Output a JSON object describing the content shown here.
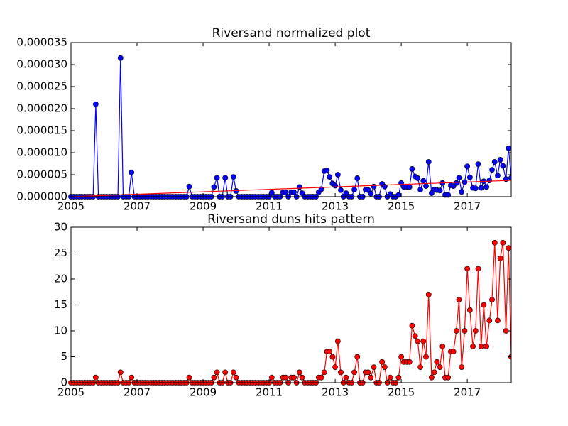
{
  "chart_data": [
    {
      "type": "line",
      "title": "Riversand normalized plot",
      "color": "#0000ff",
      "x": [
        2005,
        2005.08,
        2005.17,
        2005.25,
        2005.33,
        2005.42,
        2005.5,
        2005.58,
        2005.67,
        2005.75,
        2005.83,
        2005.92,
        2006,
        2006.08,
        2006.17,
        2006.25,
        2006.33,
        2006.42,
        2006.5,
        2006.58,
        2006.67,
        2006.75,
        2006.83,
        2006.92,
        2007,
        2007.08,
        2007.17,
        2007.25,
        2007.33,
        2007.42,
        2007.5,
        2007.58,
        2007.67,
        2007.75,
        2007.83,
        2007.92,
        2008,
        2008.08,
        2008.17,
        2008.25,
        2008.33,
        2008.42,
        2008.5,
        2008.58,
        2008.67,
        2008.75,
        2008.83,
        2008.92,
        2009,
        2009.08,
        2009.17,
        2009.25,
        2009.33,
        2009.42,
        2009.5,
        2009.58,
        2009.67,
        2009.75,
        2009.83,
        2009.92,
        2010,
        2010.08,
        2010.17,
        2010.25,
        2010.33,
        2010.42,
        2010.5,
        2010.58,
        2010.67,
        2010.75,
        2010.83,
        2010.92,
        2011,
        2011.08,
        2011.17,
        2011.25,
        2011.33,
        2011.42,
        2011.5,
        2011.58,
        2011.67,
        2011.75,
        2011.83,
        2011.92,
        2012,
        2012.08,
        2012.17,
        2012.25,
        2012.33,
        2012.42,
        2012.5,
        2012.58,
        2012.67,
        2012.75,
        2012.83,
        2012.92,
        2013,
        2013.08,
        2013.17,
        2013.25,
        2013.33,
        2013.42,
        2013.5,
        2013.58,
        2013.67,
        2013.75,
        2013.83,
        2013.92,
        2014,
        2014.08,
        2014.17,
        2014.25,
        2014.33,
        2014.42,
        2014.5,
        2014.58,
        2014.67,
        2014.75,
        2014.83,
        2014.92,
        2015,
        2015.08,
        2015.17,
        2015.25,
        2015.33,
        2015.42,
        2015.5,
        2015.58,
        2015.67,
        2015.75,
        2015.83,
        2015.92,
        2016,
        2016.08,
        2016.17,
        2016.25,
        2016.33,
        2016.42,
        2016.5,
        2016.58,
        2016.67,
        2016.75,
        2016.83,
        2016.92,
        2017,
        2017.08,
        2017.17,
        2017.25,
        2017.33,
        2017.42,
        2017.5,
        2017.58,
        2017.67,
        2017.75,
        2017.83,
        2017.92,
        2018,
        2018.08,
        2018.17,
        2018.25,
        2018.33
      ],
      "values": [
        0,
        0,
        0,
        0,
        0,
        0,
        0,
        0,
        0,
        2.1e-05,
        0,
        0,
        0,
        0,
        0,
        0,
        0,
        0,
        3.15e-05,
        0,
        0,
        0,
        5.5e-06,
        0,
        0,
        0,
        0,
        0,
        0,
        0,
        0,
        0,
        0,
        0,
        0,
        0,
        0,
        0,
        0,
        0,
        0,
        0,
        0,
        2.3e-06,
        0,
        0,
        0,
        0,
        0,
        0,
        0,
        0,
        2.2e-06,
        4.3e-06,
        0,
        0,
        4.3e-06,
        0,
        0,
        4.5e-06,
        1.3e-06,
        0,
        0,
        0,
        0,
        0,
        0,
        0,
        0,
        0,
        0,
        0,
        0,
        9e-07,
        0,
        0,
        0,
        1e-06,
        1e-06,
        0,
        1e-06,
        1e-06,
        0,
        2.2e-06,
        8e-07,
        0,
        0,
        0,
        0,
        0,
        1e-06,
        1.7e-06,
        5.8e-06,
        6e-06,
        4.5e-06,
        3e-06,
        2.5e-06,
        5e-06,
        1.5e-06,
        0,
        8e-07,
        0,
        0,
        1.6e-06,
        4.2e-06,
        0,
        0,
        1.6e-06,
        1.5e-06,
        7e-07,
        2.3e-06,
        0,
        0,
        2.9e-06,
        2.3e-06,
        0,
        6e-07,
        0,
        0,
        4e-07,
        3.1e-06,
        2.2e-06,
        2.2e-06,
        2.2e-06,
        6.3e-06,
        4.6e-06,
        4.2e-06,
        1.6e-06,
        3.6e-06,
        2.4e-06,
        7.9e-06,
        8e-07,
        1.6e-06,
        1.5e-06,
        1.4e-06,
        3.1e-06,
        4e-07,
        4e-07,
        2.6e-06,
        2.4e-06,
        3.1e-06,
        4.3e-06,
        1.1e-06,
        3.3e-06,
        6.9e-06,
        4.4e-06,
        2e-06,
        1.9e-06,
        7.4e-06,
        2e-06,
        3.5e-06,
        2.2e-06,
        3.7e-06,
        6.1e-06,
        7.9e-06,
        4.8e-06,
        8.4e-06,
        7e-06,
        4e-06,
        1.1e-05,
        4.3e-06
      ],
      "trend": {
        "color": "#ff0000",
        "x": [
          2005,
          2018.33
        ],
        "values": [
          0,
          3.7e-06
        ]
      },
      "xlim": [
        2005,
        2018.33
      ],
      "xticks": [
        2005,
        2007,
        2009,
        2011,
        2013,
        2015,
        2017
      ],
      "ylim": [
        0,
        3.5e-05
      ],
      "yticks": [
        {
          "value": 0,
          "label": "0.000000"
        },
        {
          "value": 5e-06,
          "label": "0.000005"
        },
        {
          "value": 1e-05,
          "label": "0.000010"
        },
        {
          "value": 1.5e-05,
          "label": "0.000015"
        },
        {
          "value": 2e-05,
          "label": "0.000020"
        },
        {
          "value": 2.5e-05,
          "label": "0.000025"
        },
        {
          "value": 3e-05,
          "label": "0.000030"
        },
        {
          "value": 3.5e-05,
          "label": "0.000035"
        }
      ]
    },
    {
      "type": "line",
      "title": "Riversand duns hits pattern",
      "color": "#ff0000",
      "x": [
        2005,
        2005.08,
        2005.17,
        2005.25,
        2005.33,
        2005.42,
        2005.5,
        2005.58,
        2005.67,
        2005.75,
        2005.83,
        2005.92,
        2006,
        2006.08,
        2006.17,
        2006.25,
        2006.33,
        2006.42,
        2006.5,
        2006.58,
        2006.67,
        2006.75,
        2006.83,
        2006.92,
        2007,
        2007.08,
        2007.17,
        2007.25,
        2007.33,
        2007.42,
        2007.5,
        2007.58,
        2007.67,
        2007.75,
        2007.83,
        2007.92,
        2008,
        2008.08,
        2008.17,
        2008.25,
        2008.33,
        2008.42,
        2008.5,
        2008.58,
        2008.67,
        2008.75,
        2008.83,
        2008.92,
        2009,
        2009.08,
        2009.17,
        2009.25,
        2009.33,
        2009.42,
        2009.5,
        2009.58,
        2009.67,
        2009.75,
        2009.83,
        2009.92,
        2010,
        2010.08,
        2010.17,
        2010.25,
        2010.33,
        2010.42,
        2010.5,
        2010.58,
        2010.67,
        2010.75,
        2010.83,
        2010.92,
        2011,
        2011.08,
        2011.17,
        2011.25,
        2011.33,
        2011.42,
        2011.5,
        2011.58,
        2011.67,
        2011.75,
        2011.83,
        2011.92,
        2012,
        2012.08,
        2012.17,
        2012.25,
        2012.33,
        2012.42,
        2012.5,
        2012.58,
        2012.67,
        2012.75,
        2012.83,
        2012.92,
        2013,
        2013.08,
        2013.17,
        2013.25,
        2013.33,
        2013.42,
        2013.5,
        2013.58,
        2013.67,
        2013.75,
        2013.83,
        2013.92,
        2014,
        2014.08,
        2014.17,
        2014.25,
        2014.33,
        2014.42,
        2014.5,
        2014.58,
        2014.67,
        2014.75,
        2014.83,
        2014.92,
        2015,
        2015.08,
        2015.17,
        2015.25,
        2015.33,
        2015.42,
        2015.5,
        2015.58,
        2015.67,
        2015.75,
        2015.83,
        2015.92,
        2016,
        2016.08,
        2016.17,
        2016.25,
        2016.33,
        2016.42,
        2016.5,
        2016.58,
        2016.67,
        2016.75,
        2016.83,
        2016.92,
        2017,
        2017.08,
        2017.17,
        2017.25,
        2017.33,
        2017.42,
        2017.5,
        2017.58,
        2017.67,
        2017.75,
        2017.83,
        2017.92,
        2018,
        2018.08,
        2018.17,
        2018.25,
        2018.33
      ],
      "values": [
        0,
        0,
        0,
        0,
        0,
        0,
        0,
        0,
        0,
        1,
        0,
        0,
        0,
        0,
        0,
        0,
        0,
        0,
        2,
        0,
        0,
        0,
        1,
        0,
        0,
        0,
        0,
        0,
        0,
        0,
        0,
        0,
        0,
        0,
        0,
        0,
        0,
        0,
        0,
        0,
        0,
        0,
        0,
        1,
        0,
        0,
        0,
        0,
        0,
        0,
        0,
        0,
        1,
        2,
        0,
        0,
        2,
        0,
        0,
        2,
        1,
        0,
        0,
        0,
        0,
        0,
        0,
        0,
        0,
        0,
        0,
        0,
        0,
        1,
        0,
        0,
        0,
        1,
        1,
        0,
        1,
        1,
        0,
        2,
        1,
        0,
        0,
        0,
        0,
        0,
        1,
        1,
        2,
        6,
        6,
        5,
        3,
        8,
        2,
        0,
        1,
        0,
        0,
        2,
        5,
        0,
        0,
        2,
        2,
        1,
        3,
        0,
        0,
        4,
        3,
        0,
        1,
        0,
        0,
        1,
        5,
        4,
        4,
        4,
        11,
        9,
        8,
        3,
        8,
        5,
        17,
        1,
        2,
        4,
        3,
        7,
        1,
        1,
        6,
        6,
        10,
        16,
        3,
        10,
        22,
        14,
        7,
        10,
        22,
        7,
        15,
        7,
        12,
        16,
        27,
        12,
        24,
        27,
        10,
        26,
        5
      ],
      "xlim": [
        2005,
        2018.33
      ],
      "xticks": [
        2005,
        2007,
        2009,
        2011,
        2013,
        2015,
        2017
      ],
      "ylim": [
        0,
        30
      ],
      "yticks": [
        0,
        5,
        10,
        15,
        20,
        25,
        30
      ]
    }
  ]
}
